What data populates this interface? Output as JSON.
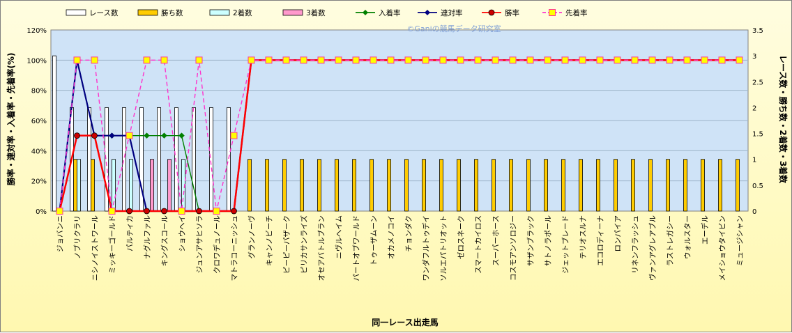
{
  "chart_data": {
    "type": "bar+line",
    "watermark": "©Ganiの競馬データ研究室",
    "xlabel": "同一レース出走馬",
    "ylabel_left": "勝率・連対率・入着率・先着率(%)",
    "ylabel_right": "レース数・勝ち数・2着数・3着数",
    "ylim_left": [
      0,
      120
    ],
    "ylim_right": [
      0,
      3.5
    ],
    "yticks_left": [
      "0%",
      "20%",
      "40%",
      "60%",
      "80%",
      "100%",
      "120%"
    ],
    "yticks_right": [
      "0",
      "0.5",
      "1",
      "1.5",
      "2",
      "2.5",
      "3",
      "3.5"
    ],
    "categories": [
      "ジョバンニ",
      "ノブリクラリ",
      "ニシノイストワール",
      "ミッキーゴールド",
      "パルティカ",
      "ナグルファル",
      "キングスコール",
      "ショウヘイ",
      "ジュンアサヒソラ",
      "クロワデュノール",
      "マトラコーニッシュ",
      "グランノーヴ",
      "キャンノビーチ",
      "ピーピーパザーク",
      "ピリカサンライズ",
      "オセアバトルブラン",
      "ニヴルヘイム",
      "パートオブワールド",
      "トゥーザムーン",
      "オカメノコイ",
      "チョンダク",
      "ワンダフルトゥデイ",
      "ソルエパトリオット",
      "ゼロスネーク",
      "スマートカイロス",
      "スーパーホース",
      "コスモアンソロジー",
      "サザンブラック",
      "サトノラポール",
      "ジェットブレード",
      "テリオスルナ",
      "エコロディーナ",
      "ロンパイア",
      "リネンフラッシュ",
      "ヴァンアグレアブル",
      "ラストレガシー",
      "ウォルスター",
      "エーデル",
      "メイショウタイビン",
      "ミュージシャン"
    ],
    "series": [
      {
        "name": "レース数",
        "axis": "right",
        "type": "bar",
        "color": "#ffffff",
        "values": [
          3,
          2,
          2,
          2,
          2,
          2,
          2,
          2,
          2,
          2,
          2,
          0,
          0,
          0,
          0,
          0,
          0,
          0,
          0,
          0,
          0,
          0,
          0,
          0,
          0,
          0,
          0,
          0,
          0,
          0,
          0,
          0,
          0,
          0,
          0,
          0,
          0,
          0,
          0,
          0
        ]
      },
      {
        "name": "勝ち数",
        "axis": "right",
        "type": "bar",
        "color": "#ffcc00",
        "values": [
          0,
          1,
          1,
          0,
          0,
          0,
          0,
          0,
          0,
          0,
          0,
          1,
          1,
          1,
          1,
          1,
          1,
          1,
          1,
          1,
          1,
          1,
          1,
          1,
          1,
          1,
          1,
          1,
          1,
          1,
          1,
          1,
          1,
          1,
          1,
          1,
          1,
          1,
          1,
          1
        ]
      },
      {
        "name": "2着数",
        "axis": "right",
        "type": "bar",
        "color": "#ccffff",
        "values": [
          0,
          1,
          0,
          1,
          1,
          0,
          0,
          1,
          0,
          0,
          0,
          0,
          0,
          0,
          0,
          0,
          0,
          0,
          0,
          0,
          0,
          0,
          0,
          0,
          0,
          0,
          0,
          0,
          0,
          0,
          0,
          0,
          0,
          0,
          0,
          0,
          0,
          0,
          0,
          0
        ]
      },
      {
        "name": "3着数",
        "axis": "right",
        "type": "bar",
        "color": "#ff99cc",
        "values": [
          0,
          0,
          0,
          0,
          0,
          1,
          1,
          0,
          0,
          0,
          0,
          0,
          0,
          0,
          0,
          0,
          0,
          0,
          0,
          0,
          0,
          0,
          0,
          0,
          0,
          0,
          0,
          0,
          0,
          0,
          0,
          0,
          0,
          0,
          0,
          0,
          0,
          0,
          0,
          0
        ]
      },
      {
        "name": "入着率",
        "axis": "left",
        "type": "line",
        "color": "#008000",
        "marker": "diamond",
        "values": [
          0,
          100,
          50,
          50,
          50,
          50,
          50,
          50,
          0,
          0,
          0,
          100,
          100,
          100,
          100,
          100,
          100,
          100,
          100,
          100,
          100,
          100,
          100,
          100,
          100,
          100,
          100,
          100,
          100,
          100,
          100,
          100,
          100,
          100,
          100,
          100,
          100,
          100,
          100,
          100
        ]
      },
      {
        "name": "連対率",
        "axis": "left",
        "type": "line",
        "color": "#000080",
        "marker": "diamond",
        "values": [
          0,
          100,
          50,
          50,
          50,
          0,
          0,
          0,
          0,
          0,
          0,
          100,
          100,
          100,
          100,
          100,
          100,
          100,
          100,
          100,
          100,
          100,
          100,
          100,
          100,
          100,
          100,
          100,
          100,
          100,
          100,
          100,
          100,
          100,
          100,
          100,
          100,
          100,
          100,
          100
        ]
      },
      {
        "name": "勝率",
        "axis": "left",
        "type": "line",
        "color": "#ff0000",
        "marker": "circle",
        "values": [
          0,
          50,
          50,
          0,
          0,
          0,
          0,
          0,
          0,
          0,
          0,
          100,
          100,
          100,
          100,
          100,
          100,
          100,
          100,
          100,
          100,
          100,
          100,
          100,
          100,
          100,
          100,
          100,
          100,
          100,
          100,
          100,
          100,
          100,
          100,
          100,
          100,
          100,
          100,
          100
        ]
      },
      {
        "name": "先着率",
        "axis": "left",
        "type": "line",
        "color": "#ff33cc",
        "marker": "square",
        "dashed": true,
        "values": [
          0,
          100,
          100,
          0,
          50,
          100,
          100,
          0,
          100,
          0,
          50,
          100,
          100,
          100,
          100,
          100,
          100,
          100,
          100,
          100,
          100,
          100,
          100,
          100,
          100,
          100,
          100,
          100,
          100,
          100,
          100,
          100,
          100,
          100,
          100,
          100,
          100,
          100,
          100,
          100
        ]
      }
    ]
  }
}
